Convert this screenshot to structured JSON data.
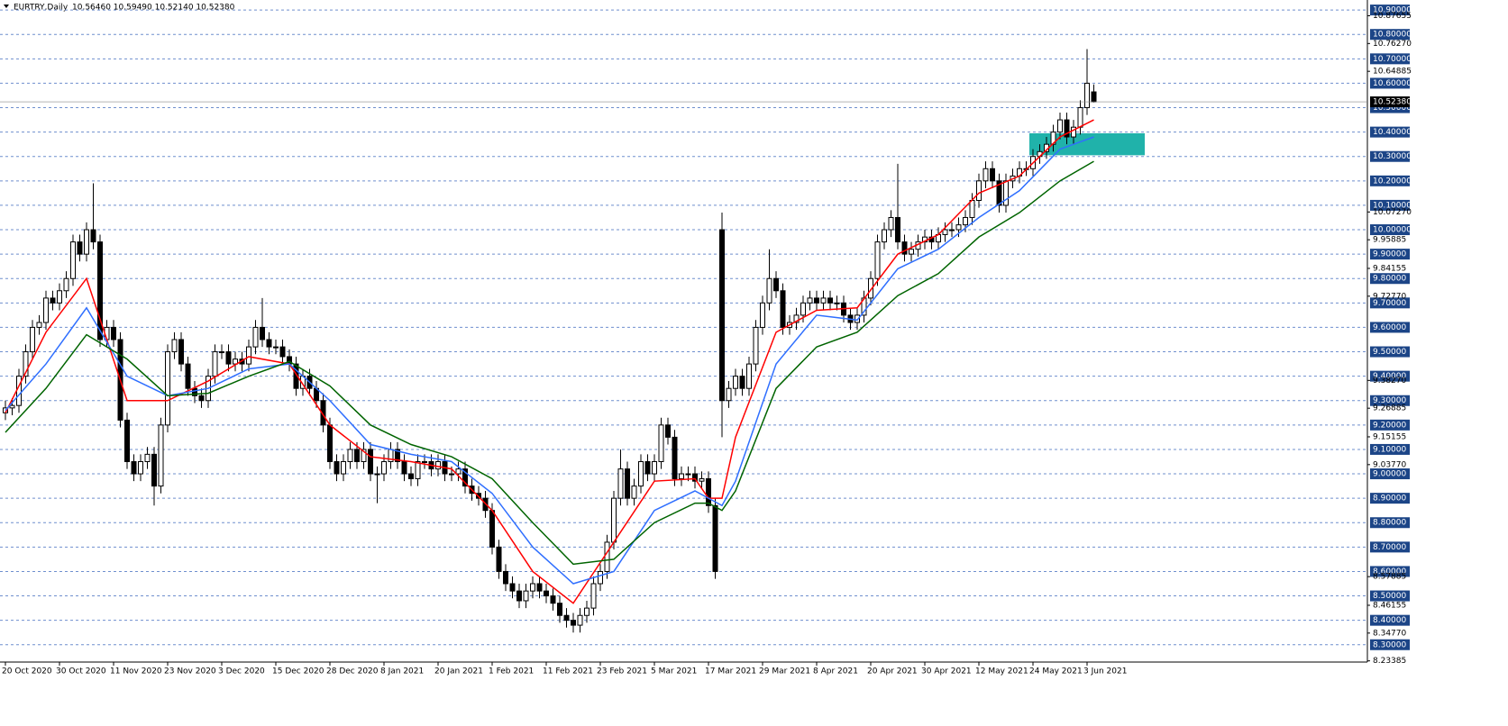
{
  "chart_data": {
    "type": "candlestick",
    "title": "EURTRY,Daily",
    "subtitle": "10.56460 10.59490 10.52140 10.52380",
    "categories": [
      "20 Oct 2020",
      null,
      null,
      null,
      null,
      null,
      null,
      null,
      "30 Oct 2020",
      null,
      null,
      null,
      null,
      null,
      null,
      null,
      "11 Nov 2020",
      null,
      null,
      null,
      null,
      null,
      null,
      null,
      "23 Nov 2020",
      null,
      null,
      null,
      null,
      null,
      null,
      null,
      "3 Dec 2020",
      null,
      null,
      null,
      null,
      null,
      null,
      null,
      "15 Dec 2020",
      null,
      null,
      null,
      null,
      null,
      null,
      null,
      "28 Dec 2020",
      null,
      null,
      null,
      null,
      null,
      null,
      null,
      "8 Jan 2021",
      null,
      null,
      null,
      null,
      null,
      null,
      null,
      "20 Jan 2021",
      null,
      null,
      null,
      null,
      null,
      null,
      null,
      "1 Feb 2021",
      null,
      null,
      null,
      null,
      null,
      null,
      null,
      "11 Feb 2021",
      null,
      null,
      null,
      null,
      null,
      null,
      null,
      "23 Feb 2021",
      null,
      null,
      null,
      null,
      null,
      null,
      null,
      "5 Mar 2021",
      null,
      null,
      null,
      null,
      null,
      null,
      null,
      "17 Mar 2021",
      null,
      null,
      null,
      null,
      null,
      null,
      null,
      "29 Mar 2021",
      null,
      null,
      null,
      null,
      null,
      null,
      null,
      "8 Apr 2021",
      null,
      null,
      null,
      null,
      null,
      null,
      null,
      "20 Apr 2021",
      null,
      null,
      null,
      null,
      null,
      null,
      null,
      "30 Apr 2021",
      null,
      null,
      null,
      null,
      null,
      null,
      null,
      "12 May 2021",
      null,
      null,
      null,
      null,
      null,
      null,
      null,
      "24 May 2021",
      null,
      null,
      null,
      null,
      null,
      null,
      null,
      "3 Jun 2021",
      null
    ],
    "open": [
      9.25,
      9.27,
      9.28,
      9.4,
      9.5,
      9.6,
      9.62,
      9.72,
      9.7,
      9.75,
      9.8,
      9.95,
      9.9,
      10.0,
      9.95,
      9.55,
      9.6,
      9.55,
      9.22,
      9.05,
      9.0,
      9.05,
      9.08,
      8.95,
      9.2,
      9.5,
      9.55,
      9.45,
      9.35,
      9.32,
      9.3,
      9.4,
      9.5,
      9.5,
      9.45,
      9.47,
      9.45,
      9.52,
      9.6,
      9.55,
      9.52,
      9.52,
      9.48,
      9.45,
      9.35,
      9.4,
      9.35,
      9.3,
      9.2,
      9.05,
      9.0,
      9.05,
      9.1,
      9.05,
      9.1,
      9.0,
      9.0,
      9.05,
      9.1,
      9.05,
      9.0,
      8.98,
      9.05,
      9.05,
      9.02,
      9.05,
      9.0,
      9.0,
      9.02,
      8.95,
      8.92,
      8.9,
      8.85,
      8.7,
      8.6,
      8.55,
      8.52,
      8.48,
      8.52,
      8.55,
      8.52,
      8.5,
      8.47,
      8.42,
      8.4,
      8.38,
      8.42,
      8.45,
      8.55,
      8.6,
      8.72,
      8.9,
      9.02,
      8.9,
      8.95,
      9.05,
      9.0,
      9.05,
      9.2,
      9.15,
      8.98,
      9.0,
      9.0,
      8.97,
      8.98,
      8.87,
      10.0,
      9.3,
      9.35,
      9.4,
      9.35,
      9.45,
      9.6,
      9.7,
      9.8,
      9.75,
      9.6,
      9.62,
      9.65,
      9.7,
      9.72,
      9.7,
      9.72,
      9.7,
      9.7,
      9.65,
      9.62,
      9.65,
      9.72,
      9.8,
      9.95,
      10.0,
      10.05,
      9.95,
      9.9,
      9.92,
      9.95,
      9.97,
      9.95,
      9.98,
      10.0,
      10.0,
      10.02,
      10.05,
      10.12,
      10.2,
      10.25,
      10.2,
      10.1,
      10.2,
      10.22,
      10.25,
      10.25,
      10.3,
      10.32,
      10.35,
      10.4,
      10.45,
      10.38,
      10.42,
      10.5,
      10.5646
    ],
    "high": [
      9.3,
      9.31,
      9.43,
      9.53,
      9.63,
      9.65,
      9.75,
      9.75,
      9.78,
      9.83,
      9.98,
      9.98,
      10.03,
      10.19,
      9.98,
      9.63,
      9.63,
      9.58,
      9.25,
      9.08,
      9.08,
      9.11,
      9.11,
      9.23,
      9.53,
      9.58,
      9.58,
      9.48,
      9.38,
      9.35,
      9.43,
      9.53,
      9.53,
      9.53,
      9.5,
      9.5,
      9.55,
      9.63,
      9.72,
      9.58,
      9.55,
      9.55,
      9.51,
      9.48,
      9.43,
      9.43,
      9.38,
      9.33,
      9.23,
      9.08,
      9.08,
      9.13,
      9.13,
      9.13,
      9.13,
      9.03,
      9.08,
      9.13,
      9.13,
      9.08,
      9.03,
      9.08,
      9.08,
      9.08,
      9.08,
      9.08,
      9.03,
      9.05,
      9.05,
      8.98,
      8.95,
      8.93,
      8.88,
      8.73,
      8.63,
      8.58,
      8.55,
      8.55,
      8.58,
      8.58,
      8.55,
      8.53,
      8.5,
      8.45,
      8.43,
      8.45,
      8.48,
      8.58,
      8.63,
      8.75,
      8.93,
      9.1,
      9.05,
      8.98,
      9.08,
      9.08,
      9.08,
      9.23,
      9.23,
      9.18,
      9.03,
      9.03,
      9.03,
      9.01,
      9.01,
      8.9,
      10.07,
      9.38,
      9.43,
      9.43,
      9.48,
      9.63,
      9.73,
      9.92,
      9.83,
      9.78,
      9.65,
      9.68,
      9.73,
      9.75,
      9.75,
      9.75,
      9.75,
      9.73,
      9.73,
      9.68,
      9.68,
      9.75,
      9.83,
      9.98,
      10.03,
      10.08,
      10.27,
      9.98,
      9.95,
      9.98,
      10.0,
      10.0,
      10.01,
      10.03,
      10.03,
      10.05,
      10.08,
      10.15,
      10.23,
      10.28,
      10.28,
      10.23,
      10.23,
      10.25,
      10.28,
      10.28,
      10.33,
      10.35,
      10.38,
      10.43,
      10.48,
      10.48,
      10.45,
      10.53,
      10.74,
      10.5949
    ],
    "low": [
      9.22,
      9.24,
      9.25,
      9.37,
      9.47,
      9.57,
      9.59,
      9.67,
      9.67,
      9.72,
      9.77,
      9.87,
      9.87,
      9.92,
      9.52,
      9.52,
      9.52,
      9.19,
      9.02,
      8.97,
      8.97,
      9.02,
      8.87,
      8.92,
      9.17,
      9.47,
      9.42,
      9.32,
      9.29,
      9.27,
      9.27,
      9.37,
      9.47,
      9.42,
      9.42,
      9.42,
      9.42,
      9.49,
      9.52,
      9.49,
      9.49,
      9.45,
      9.42,
      9.32,
      9.32,
      9.32,
      9.27,
      9.17,
      9.02,
      8.97,
      8.97,
      9.02,
      9.02,
      9.02,
      8.97,
      8.88,
      8.97,
      9.02,
      9.02,
      8.97,
      8.95,
      8.95,
      9.02,
      8.99,
      8.99,
      8.97,
      8.97,
      8.97,
      8.92,
      8.89,
      8.87,
      8.82,
      8.67,
      8.57,
      8.52,
      8.49,
      8.45,
      8.45,
      8.49,
      8.49,
      8.47,
      8.44,
      8.39,
      8.37,
      8.35,
      8.35,
      8.39,
      8.42,
      8.52,
      8.57,
      8.69,
      8.87,
      8.87,
      8.87,
      8.92,
      8.97,
      8.97,
      9.02,
      9.12,
      8.95,
      8.95,
      8.97,
      8.94,
      8.94,
      8.84,
      8.57,
      9.15,
      9.27,
      9.32,
      9.32,
      9.32,
      9.42,
      9.57,
      9.67,
      9.72,
      9.57,
      9.57,
      9.59,
      9.62,
      9.67,
      9.67,
      9.67,
      9.67,
      9.67,
      9.62,
      9.59,
      9.59,
      9.62,
      9.69,
      9.77,
      9.92,
      9.97,
      9.92,
      9.87,
      9.87,
      9.89,
      9.92,
      9.92,
      9.92,
      9.95,
      9.97,
      9.97,
      9.99,
      10.02,
      10.09,
      10.17,
      10.17,
      10.07,
      10.07,
      10.17,
      10.19,
      10.22,
      10.22,
      10.27,
      10.29,
      10.32,
      10.37,
      10.35,
      10.35,
      10.39,
      10.47,
      10.5214
    ],
    "close": [
      9.27,
      9.28,
      9.4,
      9.5,
      9.6,
      9.62,
      9.72,
      9.7,
      9.75,
      9.8,
      9.95,
      9.9,
      10.0,
      9.95,
      9.55,
      9.6,
      9.55,
      9.22,
      9.05,
      9.0,
      9.05,
      9.08,
      8.95,
      9.2,
      9.5,
      9.55,
      9.45,
      9.35,
      9.32,
      9.3,
      9.4,
      9.5,
      9.5,
      9.45,
      9.47,
      9.45,
      9.52,
      9.6,
      9.55,
      9.52,
      9.52,
      9.48,
      9.45,
      9.35,
      9.4,
      9.35,
      9.3,
      9.2,
      9.05,
      9.0,
      9.05,
      9.1,
      9.05,
      9.1,
      9.0,
      9.0,
      9.05,
      9.1,
      9.05,
      9.0,
      8.98,
      9.05,
      9.05,
      9.02,
      9.05,
      9.0,
      9.0,
      9.02,
      8.95,
      8.92,
      8.9,
      8.85,
      8.7,
      8.6,
      8.55,
      8.52,
      8.48,
      8.52,
      8.55,
      8.52,
      8.5,
      8.47,
      8.42,
      8.4,
      8.38,
      8.42,
      8.45,
      8.55,
      8.6,
      8.72,
      8.9,
      9.02,
      8.9,
      8.95,
      9.05,
      9.0,
      9.05,
      9.2,
      9.15,
      8.98,
      9.0,
      9.0,
      8.97,
      8.98,
      8.87,
      8.6,
      9.3,
      9.35,
      9.4,
      9.35,
      9.45,
      9.6,
      9.7,
      9.8,
      9.75,
      9.6,
      9.62,
      9.65,
      9.7,
      9.72,
      9.7,
      9.72,
      9.7,
      9.7,
      9.65,
      9.62,
      9.65,
      9.72,
      9.8,
      9.95,
      10.0,
      10.05,
      9.95,
      9.9,
      9.92,
      9.95,
      9.97,
      9.95,
      9.98,
      10.0,
      10.0,
      10.02,
      10.05,
      10.12,
      10.2,
      10.25,
      10.2,
      10.1,
      10.2,
      10.22,
      10.25,
      10.25,
      10.3,
      10.32,
      10.35,
      10.4,
      10.45,
      10.38,
      10.42,
      10.5,
      10.6,
      10.5238
    ],
    "bull_color": "#ffffff",
    "bear_color": "#000000",
    "ma_lines": [
      {
        "color": "#ff0000",
        "x": [
          0,
          6,
          12,
          18,
          24,
          30,
          36,
          42,
          48,
          54,
          60,
          66,
          72,
          78,
          84,
          90,
          96,
          102,
          104,
          106,
          108,
          114,
          120,
          126,
          132,
          138,
          144,
          150,
          156,
          161
        ],
        "values": [
          9.25,
          9.58,
          9.8,
          9.3,
          9.3,
          9.38,
          9.48,
          9.45,
          9.2,
          9.07,
          9.05,
          9.02,
          8.85,
          8.6,
          8.47,
          8.72,
          8.97,
          8.98,
          8.9,
          8.9,
          9.15,
          9.58,
          9.67,
          9.68,
          9.9,
          9.98,
          10.15,
          10.22,
          10.38,
          10.45
        ]
      },
      {
        "color": "#2f6fff",
        "x": [
          0,
          6,
          12,
          18,
          24,
          30,
          36,
          42,
          48,
          54,
          60,
          66,
          72,
          78,
          84,
          90,
          96,
          102,
          104,
          106,
          108,
          114,
          120,
          126,
          132,
          138,
          144,
          150,
          156,
          161
        ],
        "values": [
          9.26,
          9.45,
          9.68,
          9.4,
          9.32,
          9.35,
          9.43,
          9.45,
          9.3,
          9.12,
          9.08,
          9.05,
          8.92,
          8.7,
          8.55,
          8.6,
          8.85,
          8.93,
          8.9,
          8.87,
          8.97,
          9.45,
          9.65,
          9.63,
          9.84,
          9.92,
          10.05,
          10.16,
          10.33,
          10.38
        ]
      },
      {
        "color": "#006400",
        "x": [
          0,
          6,
          12,
          18,
          24,
          30,
          36,
          42,
          48,
          54,
          60,
          66,
          72,
          78,
          84,
          90,
          96,
          102,
          104,
          106,
          108,
          114,
          120,
          126,
          132,
          138,
          144,
          150,
          156,
          161
        ],
        "values": [
          9.17,
          9.35,
          9.57,
          9.47,
          9.32,
          9.33,
          9.4,
          9.46,
          9.36,
          9.2,
          9.12,
          9.07,
          8.98,
          8.8,
          8.63,
          8.65,
          8.8,
          8.88,
          8.88,
          8.85,
          8.93,
          9.35,
          9.52,
          9.58,
          9.73,
          9.82,
          9.97,
          10.07,
          10.2,
          10.28
        ]
      }
    ],
    "zone": [
      10.305,
      10.395
    ],
    "zone_color": "#20b2aa",
    "ylim": [
      8.229,
      10.941
    ],
    "yticks": [
      {
        "value": 8.3,
        "label": "8.30000"
      },
      {
        "value": 8.4,
        "label": "8.40000"
      },
      {
        "value": 8.5,
        "label": "8.50000"
      },
      {
        "value": 8.6,
        "label": "8.60000"
      },
      {
        "value": 8.7,
        "label": "8.70000"
      },
      {
        "value": 8.8,
        "label": "8.80000"
      },
      {
        "value": 8.9,
        "label": "8.90000"
      },
      {
        "value": 9.0,
        "label": "9.00000"
      },
      {
        "value": 9.1,
        "label": "9.10000"
      },
      {
        "value": 9.2,
        "label": "9.20000"
      },
      {
        "value": 9.3,
        "label": "9.30000"
      },
      {
        "value": 9.4,
        "label": "9.40000"
      },
      {
        "value": 9.5,
        "label": "9.50000"
      },
      {
        "value": 9.6,
        "label": "9.60000"
      },
      {
        "value": 9.7,
        "label": "9.70000"
      },
      {
        "value": 9.8,
        "label": "9.80000"
      },
      {
        "value": 9.9,
        "label": "9.90000"
      },
      {
        "value": 10.0,
        "label": "10.00000"
      },
      {
        "value": 10.1,
        "label": "10.10000"
      },
      {
        "value": 10.2,
        "label": "10.20000"
      },
      {
        "value": 10.3,
        "label": "10.30000"
      },
      {
        "value": 10.4,
        "label": "10.40000"
      },
      {
        "value": 10.5,
        "label": "10.50000"
      },
      {
        "value": 10.6,
        "label": "10.60000"
      },
      {
        "value": 10.7,
        "label": "10.70000"
      },
      {
        "value": 10.8,
        "label": "10.80000"
      },
      {
        "value": 10.9,
        "label": "10.90000"
      }
    ],
    "scale_ticks": [
      {
        "value": 10.87655,
        "label": "10.87655"
      },
      {
        "value": 10.7627,
        "label": "10.76270"
      },
      {
        "value": 10.64885,
        "label": "10.64885"
      },
      {
        "value": 10.0727,
        "label": "10.07270"
      },
      {
        "value": 9.95885,
        "label": "9.95885"
      },
      {
        "value": 9.84155,
        "label": "9.84155"
      },
      {
        "value": 9.7277,
        "label": "9.72770"
      },
      {
        "value": 9.3827,
        "label": "9.38270"
      },
      {
        "value": 9.26885,
        "label": "9.26885"
      },
      {
        "value": 9.15155,
        "label": "9.15155"
      },
      {
        "value": 9.0377,
        "label": "9.03770"
      },
      {
        "value": 8.57885,
        "label": "8.57885"
      },
      {
        "value": 8.46155,
        "label": "8.46155"
      },
      {
        "value": 8.3477,
        "label": "8.34770"
      },
      {
        "value": 8.23385,
        "label": "8.23385"
      }
    ],
    "last_price": {
      "value": 10.5238,
      "label": "10.52380"
    },
    "grid": true
  }
}
